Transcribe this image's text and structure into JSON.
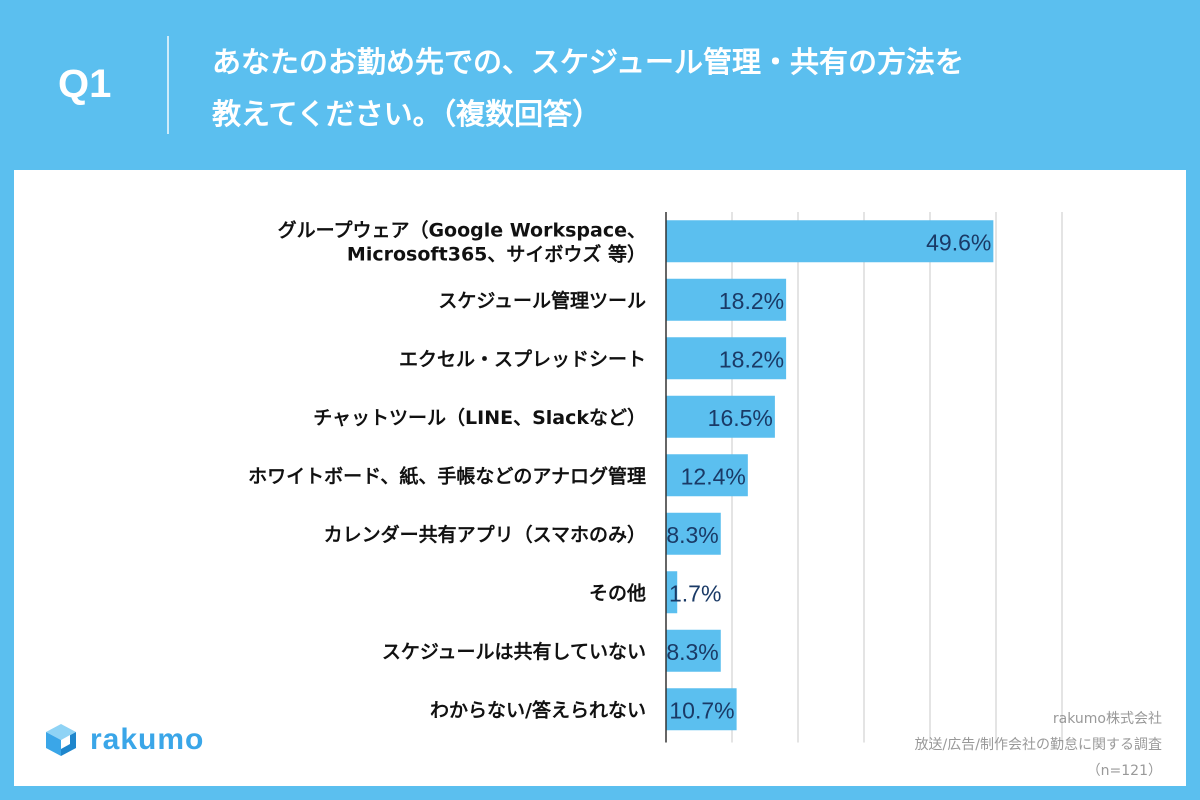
{
  "header": {
    "question_number": "Q1",
    "title_line1": "あなたのお勤め先での、スケジュール管理・共有の方法を",
    "title_line2": "教えてください。（複数回答）"
  },
  "chart_data": {
    "type": "bar",
    "orientation": "horizontal",
    "unit": "%",
    "xlim": [
      0,
      60
    ],
    "grid": true,
    "categories": [
      [
        "グループウェア（Google Workspace、",
        "Microsoft365、サイボウズ 等）"
      ],
      [
        "スケジュール管理ツール"
      ],
      [
        "エクセル・スプレッドシート"
      ],
      [
        "チャットツール（LINE、Slackなど）"
      ],
      [
        "ホワイトボード、紙、手帳などのアナログ管理"
      ],
      [
        "カレンダー共有アプリ（スマホのみ）"
      ],
      [
        "その他"
      ],
      [
        "スケジュールは共有していない"
      ],
      [
        "わからない/答えられない"
      ]
    ],
    "values": [
      49.6,
      18.2,
      18.2,
      16.5,
      12.4,
      8.3,
      1.7,
      8.3,
      10.7
    ],
    "value_labels": [
      "49.6%",
      "18.2%",
      "18.2%",
      "16.5%",
      "12.4%",
      "8.3%",
      "1.7%",
      "8.3%",
      "10.7%"
    ],
    "bar_color": "#5bbfef",
    "grid_color": "#c8c8c8",
    "axis_color": "#333333"
  },
  "logo": {
    "text": "rakumo",
    "icon": "rakumo-cube-icon",
    "color": "#3aa6e8"
  },
  "source": {
    "company": "rakumo株式会社",
    "survey": "放送/広告/制作会社の勤怠に関する調査",
    "sample": "（n=121）"
  }
}
